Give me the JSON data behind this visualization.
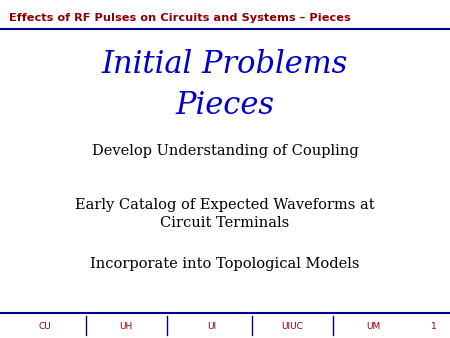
{
  "title_header": "Effects of RF Pulses on Circuits and Systems – Pieces",
  "header_color": "#8B0000",
  "header_line_color": "#00008B",
  "slide_title_line1": "Initial Problems",
  "slide_title_line2": "Pieces",
  "slide_title_color": "#0000CC",
  "bullet_items": [
    "Develop Understanding of Coupling",
    "Early Catalog of Expected Waveforms at\nCircuit Terminals",
    "Incorporate into Topological Models"
  ],
  "bullet_color": "#000000",
  "footer_items": [
    "CU",
    "UH",
    "UI",
    "UIUC",
    "UM"
  ],
  "footer_color": "#8B0000",
  "page_number": "1",
  "background_color": "#FFFFFF",
  "footer_line_color": "#00008B"
}
